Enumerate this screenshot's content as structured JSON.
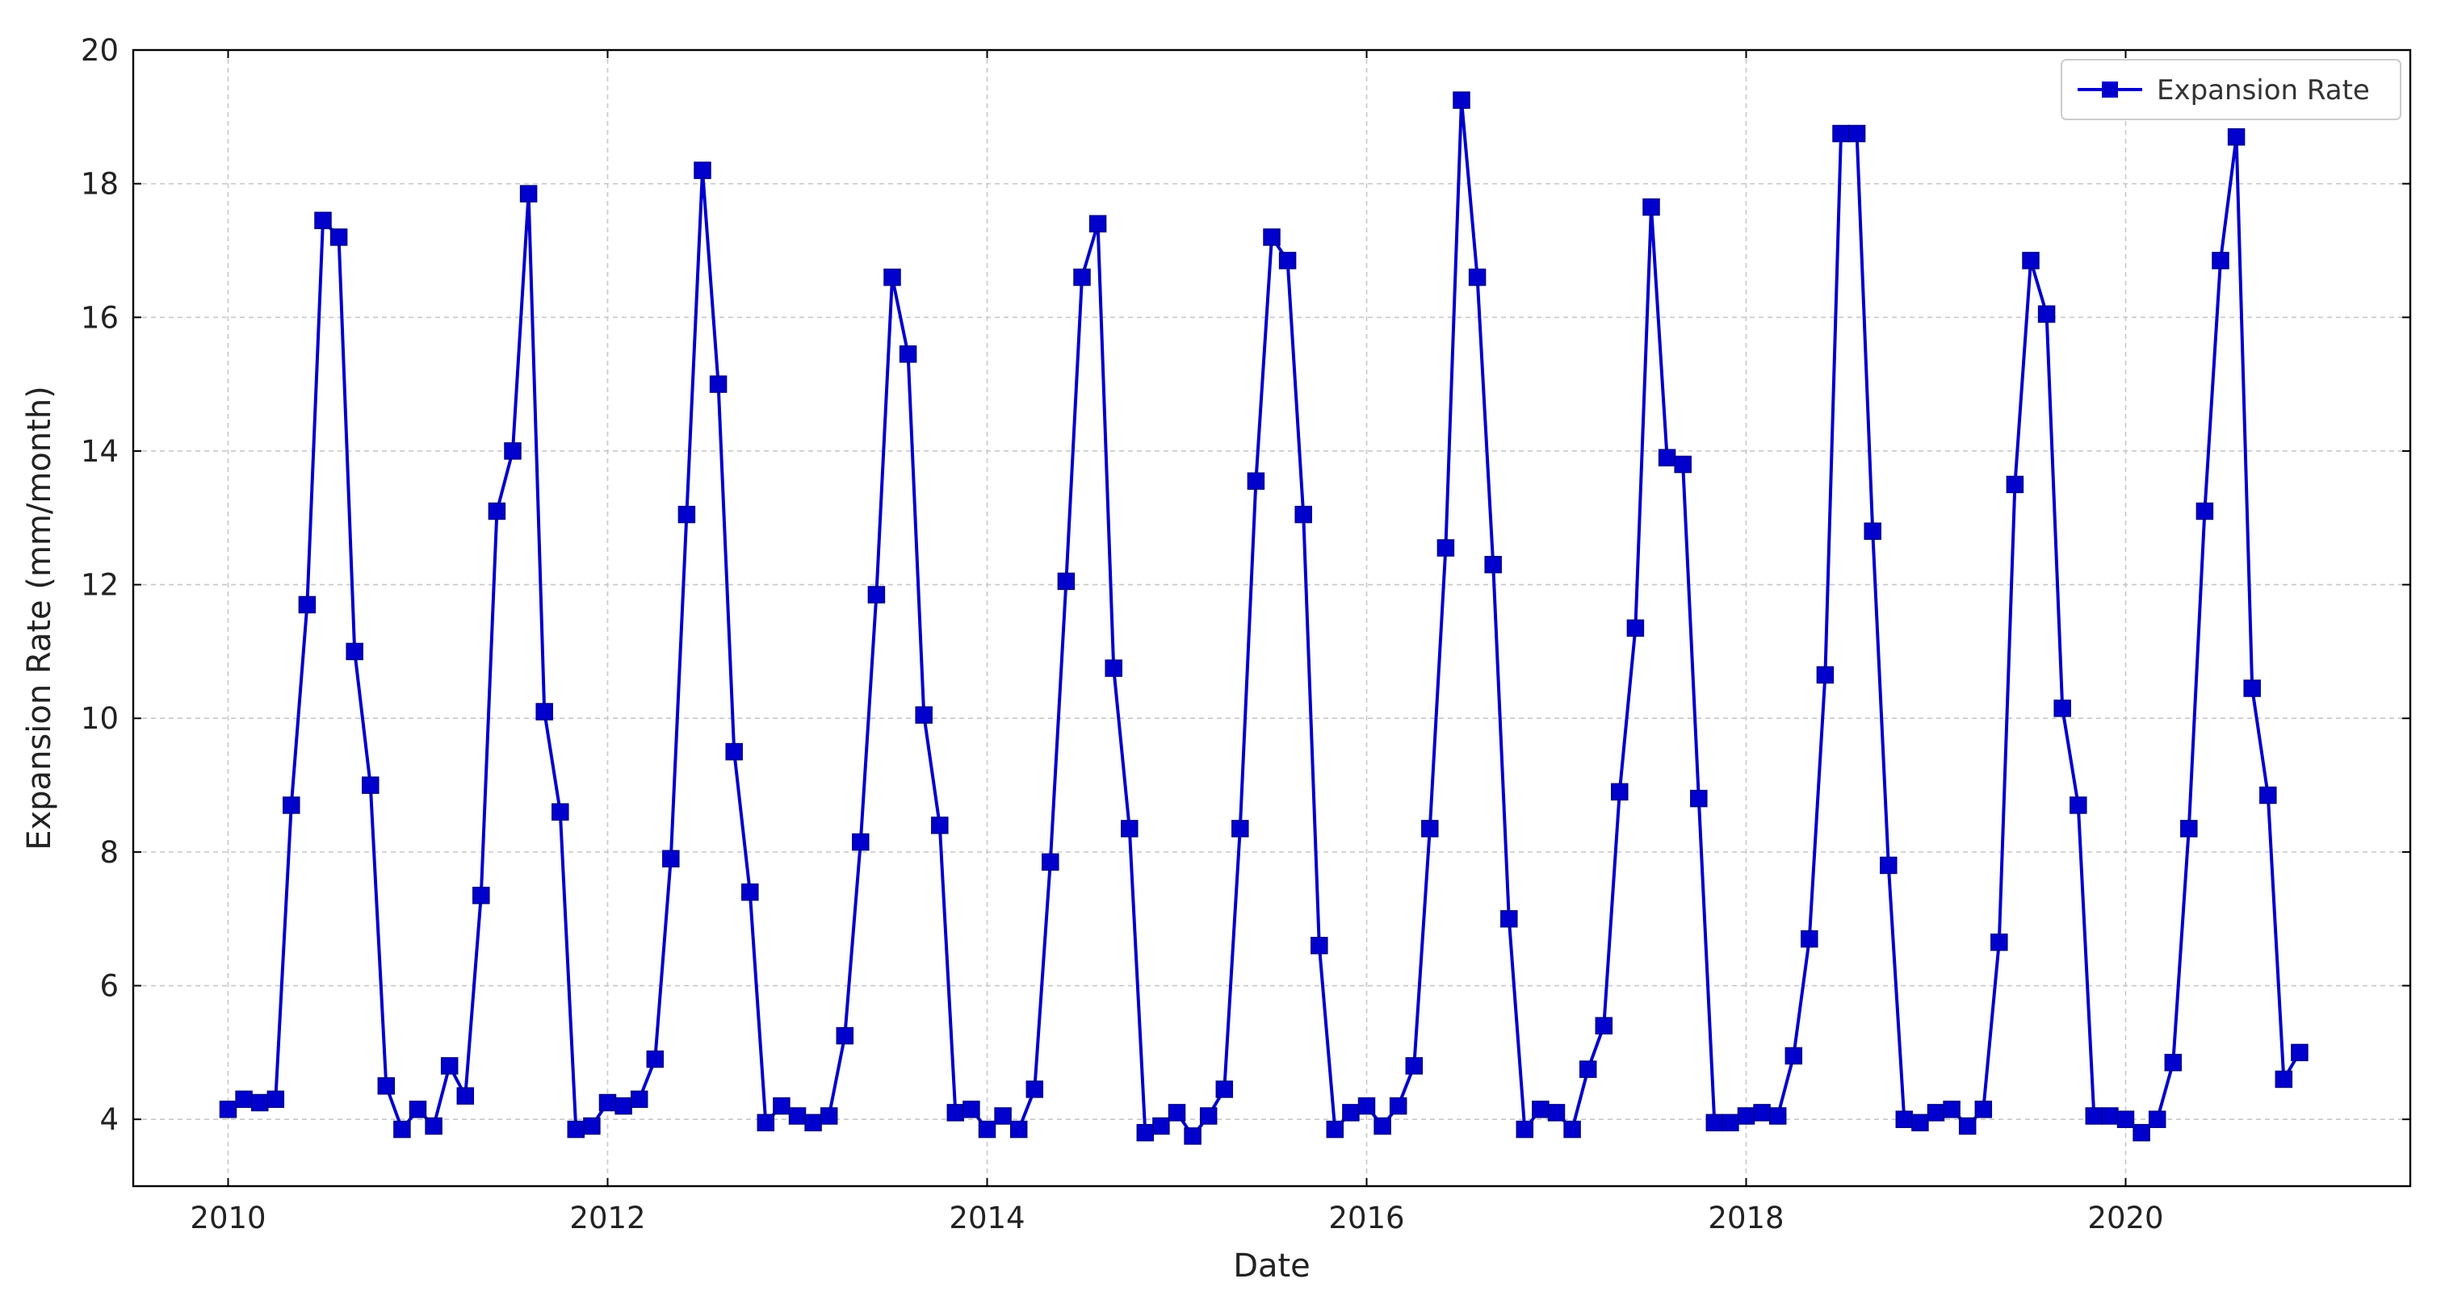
{
  "colors": {
    "series": "#0000cd",
    "marker": "#0000cd",
    "axis": "#000000",
    "grid": "#c8c8c8"
  },
  "chart_data": {
    "type": "line",
    "title": "",
    "xlabel": "Date",
    "ylabel": "Expansion Rate (mm/month)",
    "xlim": [
      "2009-07",
      "2021-07"
    ],
    "ylim": [
      3,
      20
    ],
    "xticks": [
      {
        "date": "2010-01",
        "label": "2010"
      },
      {
        "date": "2012-01",
        "label": "2012"
      },
      {
        "date": "2014-01",
        "label": "2014"
      },
      {
        "date": "2016-01",
        "label": "2016"
      },
      {
        "date": "2018-01",
        "label": "2018"
      },
      {
        "date": "2020-01",
        "label": "2020"
      }
    ],
    "yticks": [
      4,
      6,
      8,
      10,
      12,
      14,
      16,
      18,
      20
    ],
    "grid": true,
    "legend": {
      "position": "top-right",
      "entries": [
        "Expansion Rate"
      ]
    },
    "series": [
      {
        "name": "Expansion Rate",
        "marker": "square",
        "x": [
          "2010-01",
          "2010-02",
          "2010-03",
          "2010-04",
          "2010-05",
          "2010-06",
          "2010-07",
          "2010-08",
          "2010-09",
          "2010-10",
          "2010-11",
          "2010-12",
          "2011-01",
          "2011-02",
          "2011-03",
          "2011-04",
          "2011-05",
          "2011-06",
          "2011-07",
          "2011-08",
          "2011-09",
          "2011-10",
          "2011-11",
          "2011-12",
          "2012-01",
          "2012-02",
          "2012-03",
          "2012-04",
          "2012-05",
          "2012-06",
          "2012-07",
          "2012-08",
          "2012-09",
          "2012-10",
          "2012-11",
          "2012-12",
          "2013-01",
          "2013-02",
          "2013-03",
          "2013-04",
          "2013-05",
          "2013-06",
          "2013-07",
          "2013-08",
          "2013-09",
          "2013-10",
          "2013-11",
          "2013-12",
          "2014-01",
          "2014-02",
          "2014-03",
          "2014-04",
          "2014-05",
          "2014-06",
          "2014-07",
          "2014-08",
          "2014-09",
          "2014-10",
          "2014-11",
          "2014-12",
          "2015-01",
          "2015-02",
          "2015-03",
          "2015-04",
          "2015-05",
          "2015-06",
          "2015-07",
          "2015-08",
          "2015-09",
          "2015-10",
          "2015-11",
          "2015-12",
          "2016-01",
          "2016-02",
          "2016-03",
          "2016-04",
          "2016-05",
          "2016-06",
          "2016-07",
          "2016-08",
          "2016-09",
          "2016-10",
          "2016-11",
          "2016-12",
          "2017-01",
          "2017-02",
          "2017-03",
          "2017-04",
          "2017-05",
          "2017-06",
          "2017-07",
          "2017-08",
          "2017-09",
          "2017-10",
          "2017-11",
          "2017-12",
          "2018-01",
          "2018-02",
          "2018-03",
          "2018-04",
          "2018-05",
          "2018-06",
          "2018-07",
          "2018-08",
          "2018-09",
          "2018-10",
          "2018-11",
          "2018-12",
          "2019-01",
          "2019-02",
          "2019-03",
          "2019-04",
          "2019-05",
          "2019-06",
          "2019-07",
          "2019-08",
          "2019-09",
          "2019-10",
          "2019-11",
          "2019-12",
          "2020-01",
          "2020-02",
          "2020-03",
          "2020-04",
          "2020-05",
          "2020-06",
          "2020-07",
          "2020-08",
          "2020-09",
          "2020-10",
          "2020-11",
          "2020-12"
        ],
        "values": [
          4.15,
          4.3,
          4.25,
          4.3,
          8.7,
          11.7,
          17.45,
          17.2,
          11.0,
          9.0,
          4.5,
          3.85,
          4.15,
          3.9,
          4.8,
          4.35,
          7.35,
          13.1,
          14.0,
          17.85,
          10.1,
          8.6,
          3.85,
          3.9,
          4.25,
          4.2,
          4.3,
          4.9,
          7.9,
          13.05,
          18.2,
          15.0,
          9.5,
          7.4,
          3.95,
          4.2,
          4.05,
          3.95,
          4.05,
          5.25,
          8.15,
          11.85,
          16.6,
          15.45,
          10.05,
          8.4,
          4.1,
          4.15,
          3.85,
          4.05,
          3.85,
          4.45,
          7.85,
          12.05,
          16.6,
          17.4,
          10.75,
          8.35,
          3.8,
          3.9,
          4.1,
          3.75,
          4.05,
          4.45,
          8.35,
          13.55,
          17.2,
          16.85,
          13.05,
          6.6,
          3.85,
          4.1,
          4.2,
          3.9,
          4.2,
          4.8,
          8.35,
          12.55,
          19.25,
          16.6,
          12.3,
          7.0,
          3.85,
          4.15,
          4.1,
          3.85,
          4.75,
          5.4,
          8.9,
          11.35,
          17.65,
          13.9,
          13.8,
          8.8,
          3.95,
          3.95,
          4.05,
          4.1,
          4.05,
          4.95,
          6.7,
          10.65,
          18.75,
          18.75,
          12.8,
          7.8,
          4.0,
          3.95,
          4.1,
          4.15,
          3.9,
          4.15,
          6.65,
          13.5,
          16.85,
          16.05,
          10.15,
          8.7,
          4.05,
          4.05,
          4.0,
          3.8,
          4.0,
          4.85,
          8.35,
          13.1,
          16.85,
          18.7,
          10.45,
          8.85,
          4.6,
          5.0
        ]
      }
    ]
  }
}
